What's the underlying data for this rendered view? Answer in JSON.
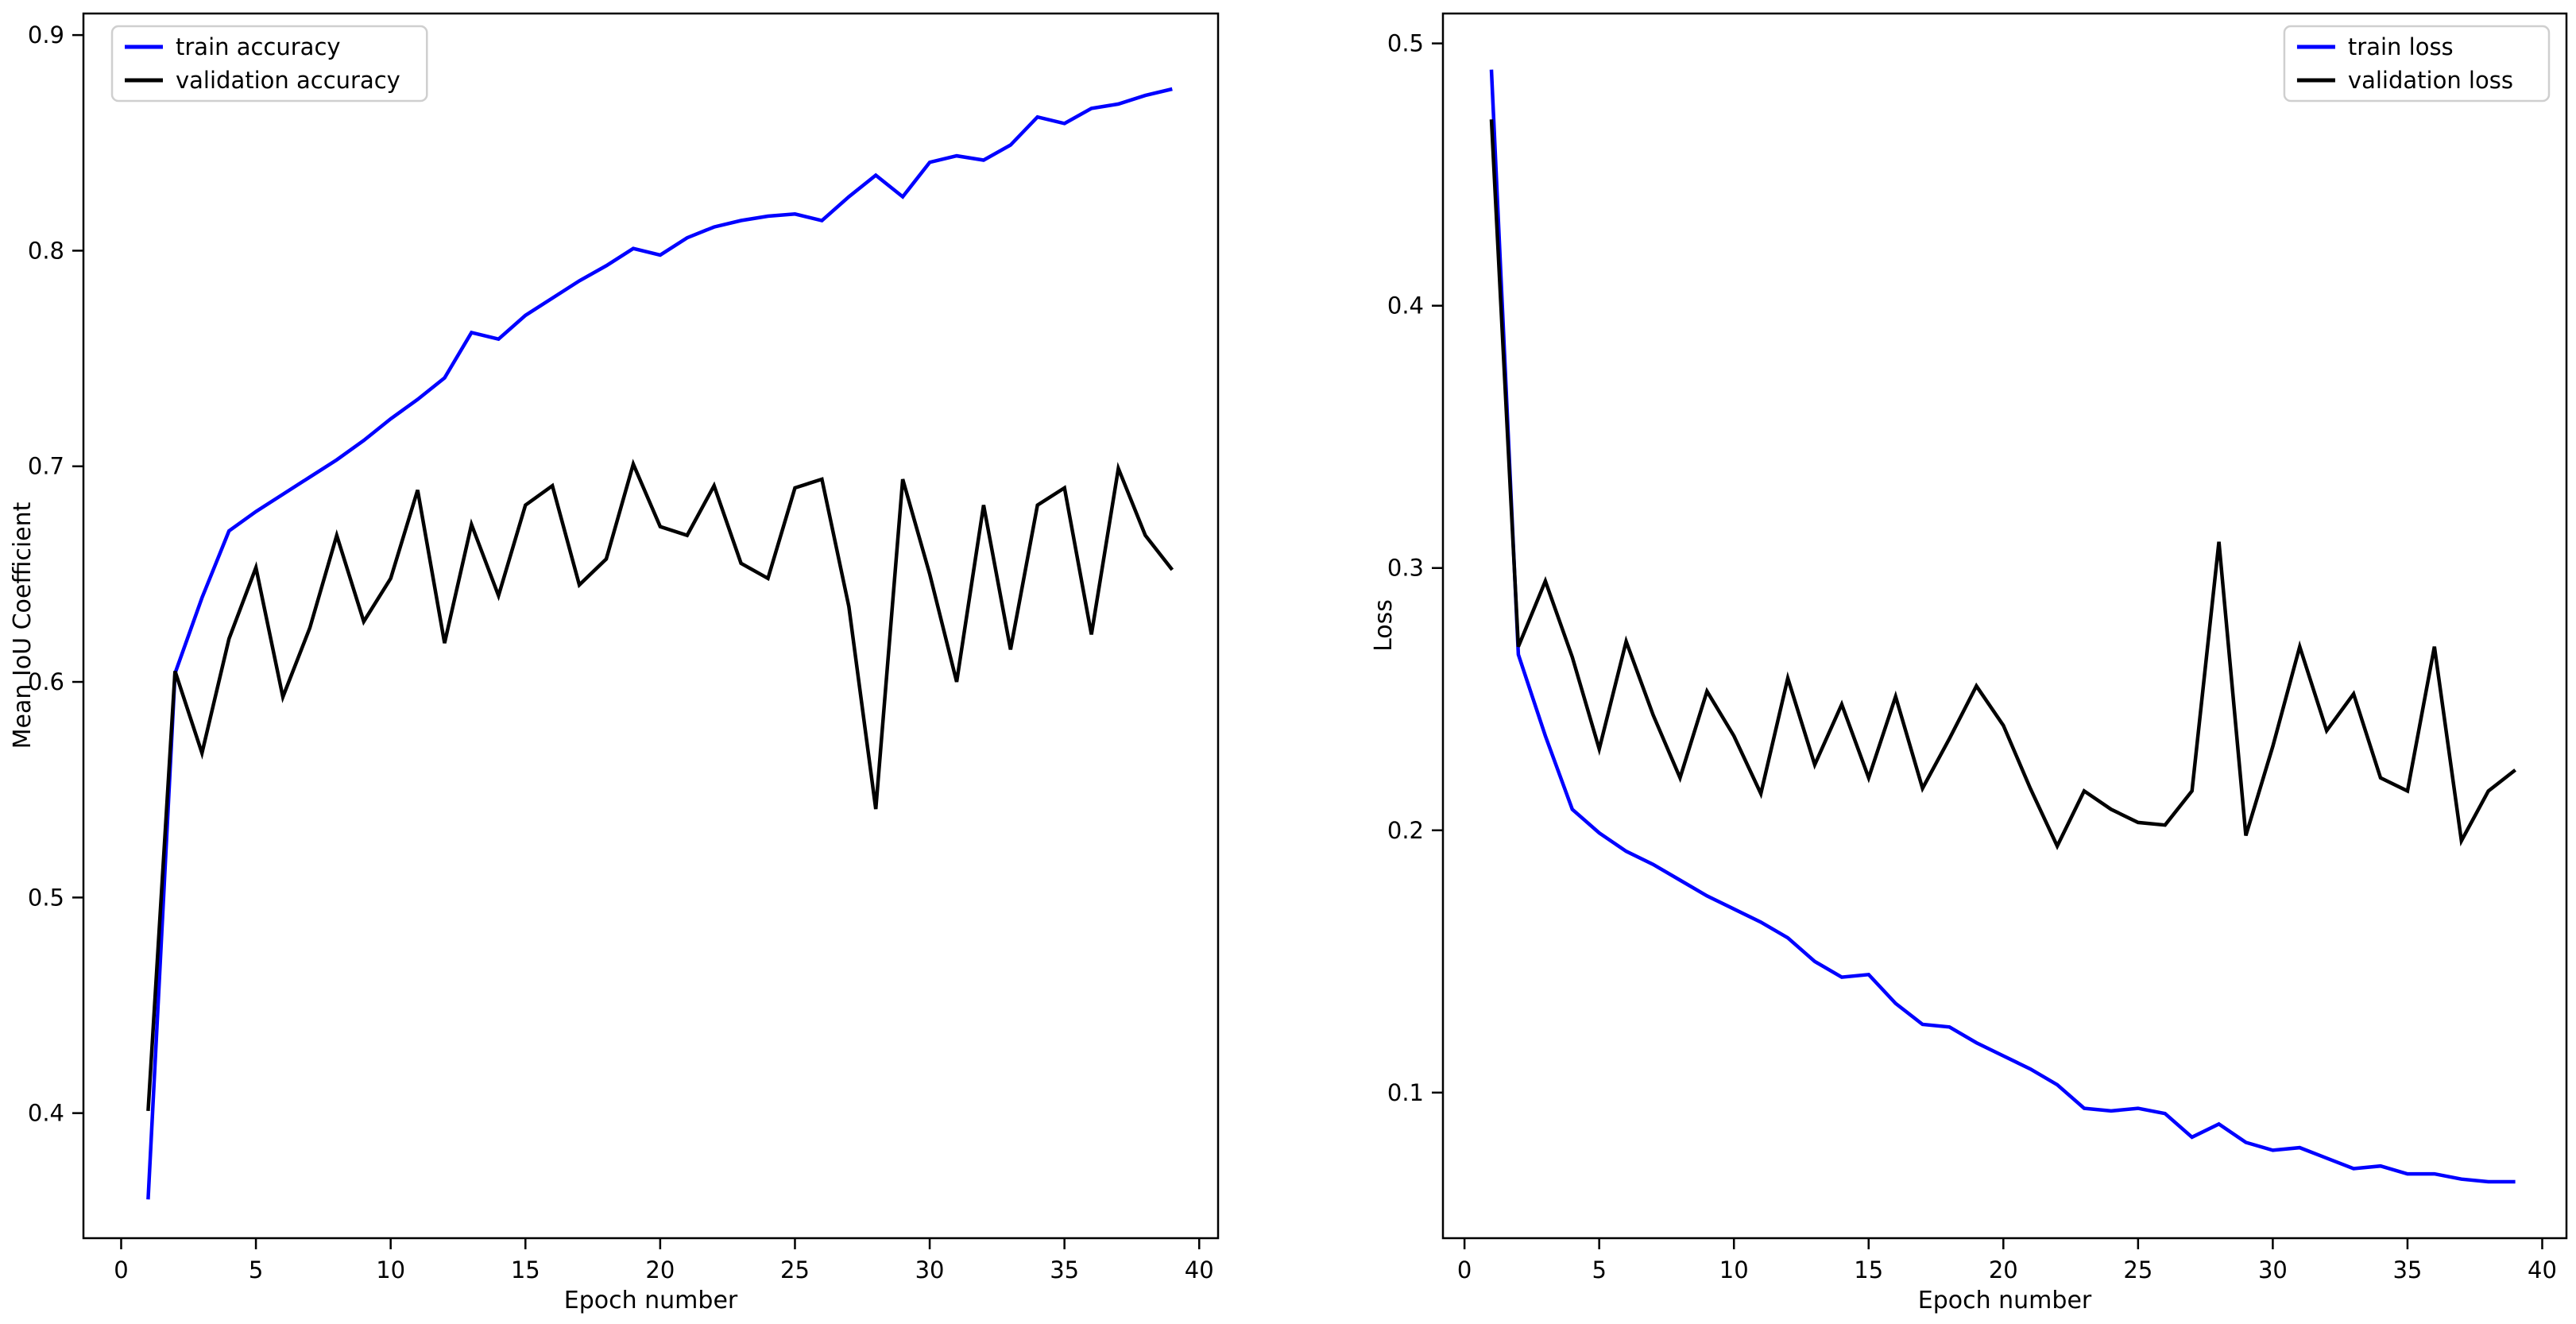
{
  "figure": {
    "background": "#ffffff",
    "train_color": "#0000ff",
    "validation_color": "#000000",
    "legend_border_color": "#cfcfcf"
  },
  "chart_data": [
    {
      "type": "line",
      "title": "",
      "xlabel": "Epoch number",
      "ylabel": "Mean IoU Coefficient",
      "xlim": [
        -1.4,
        40.7
      ],
      "ylim": [
        0.342,
        0.91
      ],
      "xticks": [
        0,
        5,
        10,
        15,
        20,
        25,
        30,
        35,
        40
      ],
      "yticks": [
        0.4,
        0.5,
        0.6,
        0.7,
        0.8,
        0.9
      ],
      "ytick_labels": [
        "0.4",
        "0.5",
        "0.6",
        "0.7",
        "0.8",
        "0.9"
      ],
      "grid": false,
      "legend_position": "top-left",
      "x": [
        1,
        2,
        3,
        4,
        5,
        6,
        7,
        8,
        9,
        10,
        11,
        12,
        13,
        14,
        15,
        16,
        17,
        18,
        19,
        20,
        21,
        22,
        23,
        24,
        25,
        26,
        27,
        28,
        29,
        30,
        31,
        32,
        33,
        34,
        35,
        36,
        37,
        38,
        39
      ],
      "series": [
        {
          "name": "train accuracy",
          "color": "#0000ff",
          "values": [
            0.36,
            0.604,
            0.639,
            0.67,
            0.679,
            0.687,
            0.695,
            0.703,
            0.712,
            0.722,
            0.731,
            0.741,
            0.762,
            0.759,
            0.77,
            0.778,
            0.786,
            0.793,
            0.801,
            0.798,
            0.806,
            0.811,
            0.814,
            0.816,
            0.817,
            0.814,
            0.825,
            0.835,
            0.825,
            0.841,
            0.844,
            0.842,
            0.849,
            0.862,
            0.859,
            0.866,
            0.868,
            0.872,
            0.875
          ]
        },
        {
          "name": "validation accuracy",
          "color": "#000000",
          "values": [
            0.401,
            0.605,
            0.567,
            0.62,
            0.653,
            0.593,
            0.625,
            0.668,
            0.628,
            0.648,
            0.689,
            0.618,
            0.673,
            0.64,
            0.682,
            0.691,
            0.645,
            0.657,
            0.701,
            0.672,
            0.668,
            0.691,
            0.655,
            0.648,
            0.69,
            0.694,
            0.635,
            0.541,
            0.694,
            0.65,
            0.6,
            0.682,
            0.615,
            0.682,
            0.69,
            0.622,
            0.699,
            0.668,
            0.652
          ]
        }
      ]
    },
    {
      "type": "line",
      "title": "",
      "xlabel": "Epoch number",
      "ylabel": "Loss",
      "xlim": [
        -0.8,
        40.9
      ],
      "ylim": [
        0.0445,
        0.5114
      ],
      "xticks": [
        0,
        5,
        10,
        15,
        20,
        25,
        30,
        35,
        40
      ],
      "yticks": [
        0.1,
        0.2,
        0.3,
        0.4,
        0.5
      ],
      "ytick_labels": [
        "0.1",
        "0.2",
        "0.3",
        "0.4",
        "0.5"
      ],
      "grid": false,
      "legend_position": "top-right",
      "x": [
        1,
        2,
        3,
        4,
        5,
        6,
        7,
        8,
        9,
        10,
        11,
        12,
        13,
        14,
        15,
        16,
        17,
        18,
        19,
        20,
        21,
        22,
        23,
        24,
        25,
        26,
        27,
        28,
        29,
        30,
        31,
        32,
        33,
        34,
        35,
        36,
        37,
        38,
        39
      ],
      "series": [
        {
          "name": "train loss",
          "color": "#0000ff",
          "values": [
            0.49,
            0.267,
            0.236,
            0.208,
            0.199,
            0.192,
            0.187,
            0.181,
            0.175,
            0.17,
            0.165,
            0.159,
            0.15,
            0.144,
            0.145,
            0.134,
            0.126,
            0.125,
            0.119,
            0.114,
            0.109,
            0.103,
            0.094,
            0.093,
            0.094,
            0.092,
            0.083,
            0.088,
            0.081,
            0.078,
            0.079,
            0.075,
            0.071,
            0.072,
            0.069,
            0.069,
            0.067,
            0.066,
            0.066
          ]
        },
        {
          "name": "validation loss",
          "color": "#000000",
          "values": [
            0.471,
            0.27,
            0.295,
            0.266,
            0.231,
            0.272,
            0.244,
            0.22,
            0.253,
            0.236,
            0.214,
            0.258,
            0.225,
            0.248,
            0.22,
            0.251,
            0.216,
            0.235,
            0.255,
            0.24,
            0.216,
            0.194,
            0.215,
            0.208,
            0.203,
            0.202,
            0.215,
            0.31,
            0.198,
            0.232,
            0.27,
            0.238,
            0.252,
            0.22,
            0.215,
            0.27,
            0.196,
            0.215,
            0.223
          ]
        }
      ]
    }
  ]
}
